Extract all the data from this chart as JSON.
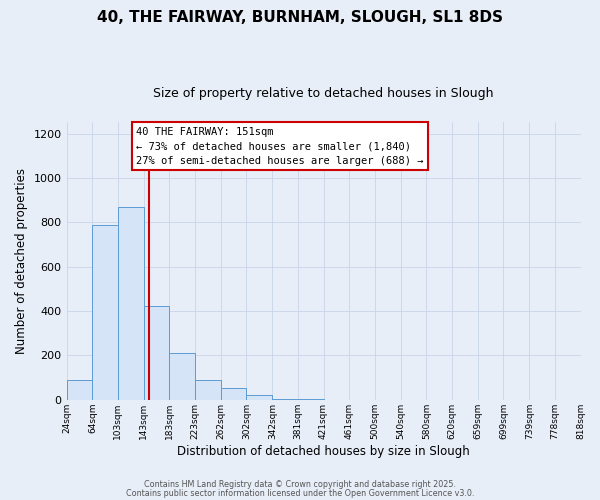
{
  "title": "40, THE FAIRWAY, BURNHAM, SLOUGH, SL1 8DS",
  "subtitle": "Size of property relative to detached houses in Slough",
  "xlabel": "Distribution of detached houses by size in Slough",
  "ylabel": "Number of detached properties",
  "bin_edges": [
    24,
    64,
    103,
    143,
    183,
    223,
    262,
    302,
    342,
    381,
    421,
    461,
    500,
    540,
    580,
    620,
    659,
    699,
    739,
    778,
    818
  ],
  "bar_heights": [
    90,
    790,
    870,
    425,
    210,
    90,
    55,
    20,
    5,
    3,
    1,
    0,
    0,
    0,
    0,
    1,
    0,
    0,
    0,
    0
  ],
  "bar_color": "#d6e4f7",
  "bar_edge_color": "#5b9bd5",
  "vline_x": 151,
  "vline_color": "#cc0000",
  "ylim": [
    0,
    1250
  ],
  "yticks": [
    0,
    200,
    400,
    600,
    800,
    1000,
    1200
  ],
  "annotation_title": "40 THE FAIRWAY: 151sqm",
  "annotation_line1": "← 73% of detached houses are smaller (1,840)",
  "annotation_line2": "27% of semi-detached houses are larger (688) →",
  "bg_color": "#e8eef8",
  "plot_bg_color": "#e8eef8",
  "footer_line1": "Contains HM Land Registry data © Crown copyright and database right 2025.",
  "footer_line2": "Contains public sector information licensed under the Open Government Licence v3.0.",
  "tick_labels": [
    "24sqm",
    "64sqm",
    "103sqm",
    "143sqm",
    "183sqm",
    "223sqm",
    "262sqm",
    "302sqm",
    "342sqm",
    "381sqm",
    "421sqm",
    "461sqm",
    "500sqm",
    "540sqm",
    "580sqm",
    "620sqm",
    "659sqm",
    "699sqm",
    "739sqm",
    "778sqm",
    "818sqm"
  ],
  "grid_color": "#c8d4e8",
  "title_fontsize": 11,
  "subtitle_fontsize": 9
}
